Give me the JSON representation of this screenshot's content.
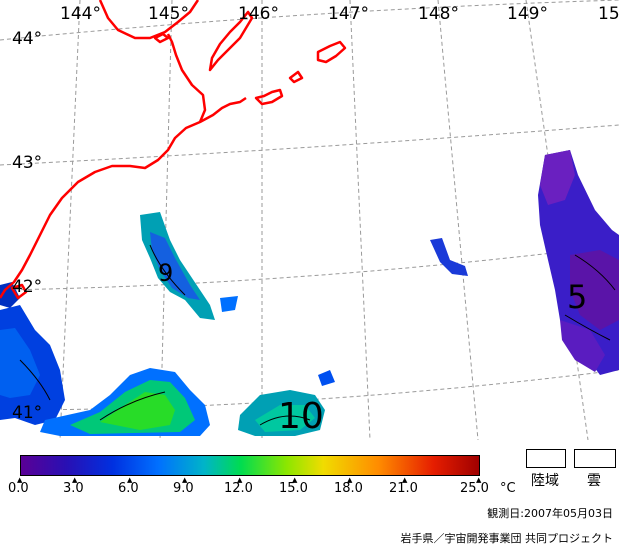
{
  "map": {
    "longitude_labels": [
      "144°",
      "145°",
      "146°",
      "147°",
      "148°",
      "149°",
      "15"
    ],
    "latitude_labels": [
      "44°",
      "43°",
      "42°",
      "41°"
    ],
    "contour_labels": [
      "9",
      "5",
      "10"
    ],
    "colors": {
      "coastline": "#ff0000",
      "grid": "#9a9a9a",
      "contour": "#000000"
    }
  },
  "colorbar": {
    "ticks": [
      "0.0",
      "3.0",
      "6.0",
      "9.0",
      "12.0",
      "15.0",
      "18.0",
      "21.0",
      "25.0"
    ],
    "unit": "°C",
    "gradient_colors": [
      "#5a0096",
      "#2810b4",
      "#0030e0",
      "#0070ff",
      "#00b4c8",
      "#00dc50",
      "#8ce600",
      "#f0dc00",
      "#ff8c00",
      "#e61e00",
      "#a00000"
    ]
  },
  "legend_boxes": {
    "land": "陸域",
    "cloud": "雲"
  },
  "footer": {
    "observation_date": "観測日:2007年05月03日",
    "credit": "岩手県／宇宙開発事業団  共同プロジェクト"
  }
}
